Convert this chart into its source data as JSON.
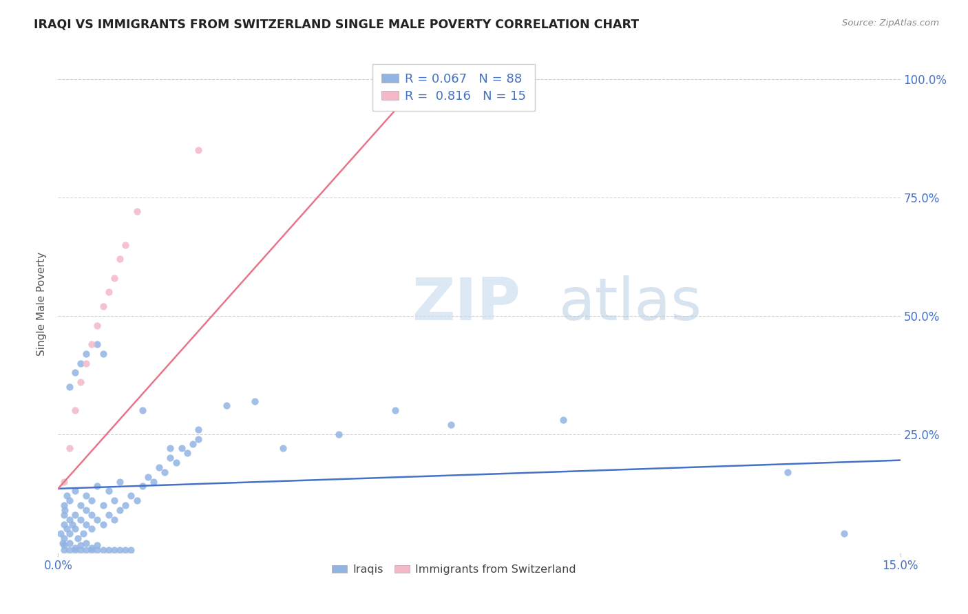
{
  "title": "IRAQI VS IMMIGRANTS FROM SWITZERLAND SINGLE MALE POVERTY CORRELATION CHART",
  "source": "Source: ZipAtlas.com",
  "ylabel": "Single Male Poverty",
  "watermark_zip": "ZIP",
  "watermark_atlas": "atlas",
  "xlim": [
    0.0,
    0.15
  ],
  "ylim": [
    0.0,
    1.05
  ],
  "iraqis_color": "#92b4e3",
  "swiss_color": "#f4b8c8",
  "iraqis_R": 0.067,
  "iraqis_N": 88,
  "swiss_R": 0.816,
  "swiss_N": 15,
  "iraqis_line_color": "#4472c4",
  "swiss_line_color": "#e8748a",
  "legend_label_iraqis": "Iraqis",
  "legend_label_swiss": "Immigrants from Switzerland",
  "iraqis_line_x0": 0.0,
  "iraqis_line_y0": 0.135,
  "iraqis_line_x1": 0.15,
  "iraqis_line_y1": 0.195,
  "swiss_line_x0": 0.0,
  "swiss_line_y0": 0.135,
  "swiss_line_x1": 0.065,
  "swiss_line_y1": 1.0,
  "iraqis_x": [
    0.0005,
    0.001,
    0.001,
    0.0015,
    0.001,
    0.002,
    0.0008,
    0.001,
    0.0012,
    0.0015,
    0.002,
    0.002,
    0.0025,
    0.003,
    0.003,
    0.003,
    0.0035,
    0.004,
    0.004,
    0.0045,
    0.005,
    0.005,
    0.005,
    0.006,
    0.006,
    0.006,
    0.007,
    0.007,
    0.008,
    0.008,
    0.009,
    0.009,
    0.01,
    0.01,
    0.011,
    0.011,
    0.012,
    0.013,
    0.014,
    0.015,
    0.016,
    0.017,
    0.018,
    0.019,
    0.02,
    0.021,
    0.022,
    0.023,
    0.024,
    0.025,
    0.001,
    0.001,
    0.002,
    0.002,
    0.003,
    0.003,
    0.004,
    0.004,
    0.005,
    0.005,
    0.006,
    0.006,
    0.007,
    0.007,
    0.008,
    0.009,
    0.01,
    0.011,
    0.012,
    0.013,
    0.002,
    0.003,
    0.004,
    0.005,
    0.007,
    0.008,
    0.015,
    0.02,
    0.025,
    0.03,
    0.035,
    0.04,
    0.05,
    0.06,
    0.07,
    0.09,
    0.13,
    0.14
  ],
  "iraqis_y": [
    0.04,
    0.03,
    0.06,
    0.05,
    0.08,
    0.07,
    0.02,
    0.1,
    0.09,
    0.12,
    0.04,
    0.11,
    0.06,
    0.05,
    0.08,
    0.13,
    0.03,
    0.07,
    0.1,
    0.04,
    0.06,
    0.09,
    0.12,
    0.05,
    0.08,
    0.11,
    0.07,
    0.14,
    0.06,
    0.1,
    0.08,
    0.13,
    0.07,
    0.11,
    0.09,
    0.15,
    0.1,
    0.12,
    0.11,
    0.14,
    0.16,
    0.15,
    0.18,
    0.17,
    0.2,
    0.19,
    0.22,
    0.21,
    0.23,
    0.24,
    0.005,
    0.015,
    0.005,
    0.02,
    0.005,
    0.01,
    0.005,
    0.015,
    0.005,
    0.02,
    0.005,
    0.01,
    0.005,
    0.015,
    0.005,
    0.005,
    0.005,
    0.005,
    0.005,
    0.005,
    0.35,
    0.38,
    0.4,
    0.42,
    0.44,
    0.42,
    0.3,
    0.22,
    0.26,
    0.31,
    0.32,
    0.22,
    0.25,
    0.3,
    0.27,
    0.28,
    0.17,
    0.04
  ],
  "swiss_x": [
    0.001,
    0.002,
    0.003,
    0.004,
    0.005,
    0.006,
    0.007,
    0.008,
    0.009,
    0.01,
    0.011,
    0.012,
    0.014,
    0.025,
    0.06
  ],
  "swiss_y": [
    0.15,
    0.22,
    0.3,
    0.36,
    0.4,
    0.44,
    0.48,
    0.52,
    0.55,
    0.58,
    0.62,
    0.65,
    0.72,
    0.85,
    1.0
  ]
}
